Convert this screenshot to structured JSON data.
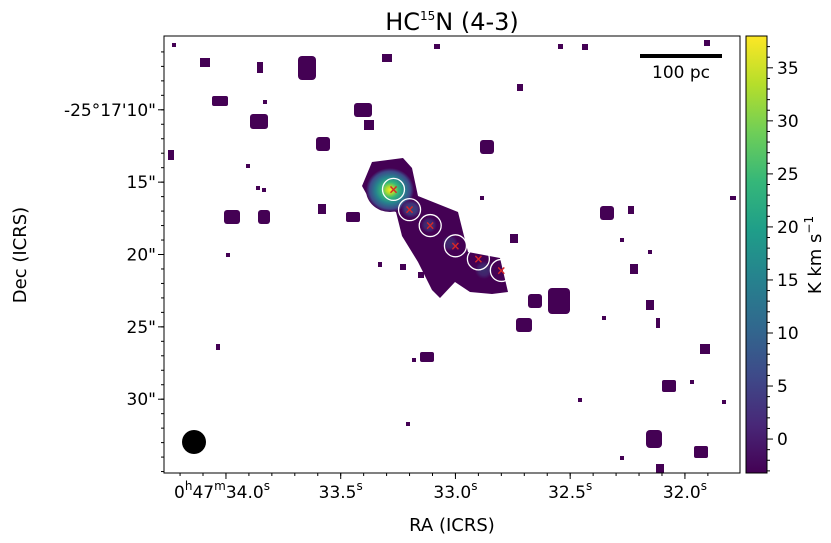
{
  "chart_data": {
    "type": "heatmap",
    "title": {
      "prefix": "HC",
      "sup": "15",
      "suffix": "N (4-3)"
    },
    "xlabel": "RA (ICRS)",
    "ylabel": "Dec (ICRS)",
    "x_ticks": [
      {
        "parts": [
          [
            "0",
            "n"
          ],
          [
            "h",
            "s"
          ],
          [
            "47",
            "n"
          ],
          [
            "m",
            "s"
          ],
          [
            "34.0",
            "n"
          ],
          [
            "s",
            "s"
          ]
        ]
      },
      {
        "parts": [
          [
            "33.5",
            "n"
          ],
          [
            "s",
            "s"
          ]
        ]
      },
      {
        "parts": [
          [
            "33.0",
            "n"
          ],
          [
            "s",
            "s"
          ]
        ]
      },
      {
        "parts": [
          [
            "32.5",
            "n"
          ],
          [
            "s",
            "s"
          ]
        ]
      },
      {
        "parts": [
          [
            "32.0",
            "n"
          ],
          [
            "s",
            "s"
          ]
        ]
      }
    ],
    "x_tick_ra_seconds": [
      34.0,
      33.5,
      33.0,
      32.5,
      32.0
    ],
    "xlim_ra_seconds": [
      34.27,
      31.76
    ],
    "y_ticks": [
      "-25°17'10\"",
      "15\"",
      "20\"",
      "25\"",
      "30\""
    ],
    "y_tick_dec_arcsec": [
      10,
      15,
      20,
      25,
      30
    ],
    "ylim_dec_arcsec": [
      35.1,
      4.9
    ],
    "colorbar": {
      "label_main": "K km s",
      "label_sup": "−1",
      "ticks": [
        "0",
        "5",
        "10",
        "15",
        "20",
        "25",
        "30",
        "35"
      ],
      "tick_values": [
        0,
        5,
        10,
        15,
        20,
        25,
        30,
        35
      ],
      "range": [
        -3.2,
        38
      ],
      "colormap": "viridis",
      "colors": [
        "#440154",
        "#482878",
        "#3e4a89",
        "#31688e",
        "#26828e",
        "#1f9e89",
        "#35b779",
        "#6ece58",
        "#b5de2b",
        "#fde725"
      ]
    },
    "scalebar_label": "100 pc",
    "beam": "filled-black-circle",
    "peak_intensity": 38,
    "circles": [
      {
        "ra_s": 33.27,
        "dec_arcsec": 15.5
      },
      {
        "ra_s": 33.2,
        "dec_arcsec": 16.9
      },
      {
        "ra_s": 33.11,
        "dec_arcsec": 18.0
      },
      {
        "ra_s": 33.0,
        "dec_arcsec": 19.4
      },
      {
        "ra_s": 32.9,
        "dec_arcsec": 20.3
      },
      {
        "ra_s": 32.8,
        "dec_arcsec": 21.1
      }
    ],
    "marker_color": "#d62728",
    "circle_color": "#ffffff"
  }
}
